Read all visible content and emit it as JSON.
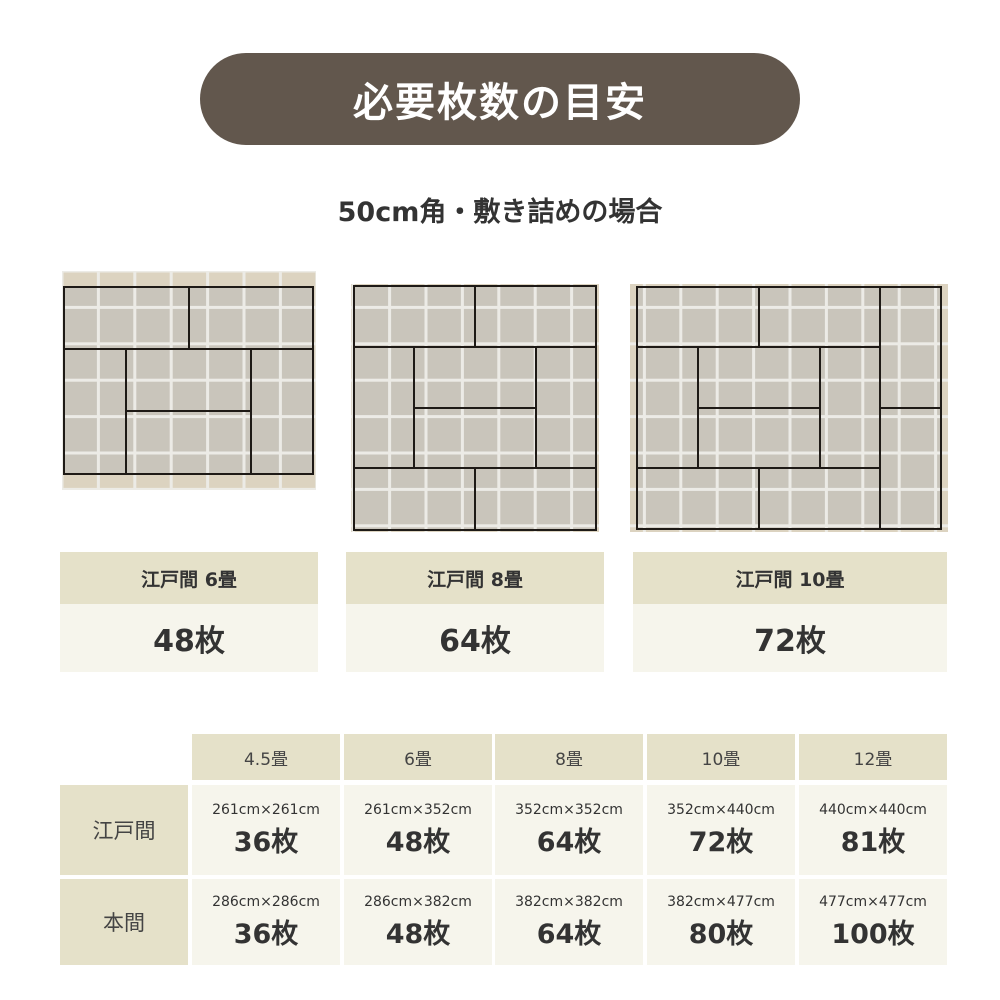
{
  "title": "必要枚数の目安",
  "subtitle": "50cm角・敷き詰めの場合",
  "colors": {
    "title_bg": "#62574d",
    "header_bg": "#e5e1c9",
    "cell_bg": "#f6f5ec",
    "tatami": "#c9c5bb",
    "floor": "#dcd3c0"
  },
  "layouts": [
    {
      "label": "江戸間 6畳",
      "count": "48枚"
    },
    {
      "label": "江戸間 8畳",
      "count": "64枚"
    },
    {
      "label": "江戸間 10畳",
      "count": "72枚"
    }
  ],
  "table": {
    "headers": [
      "4.5畳",
      "6畳",
      "8畳",
      "10畳",
      "12畳"
    ],
    "rows": [
      {
        "name": "江戸間",
        "cells": [
          {
            "size": "261cm×261cm",
            "count": "36枚"
          },
          {
            "size": "261cm×352cm",
            "count": "48枚"
          },
          {
            "size": "352cm×352cm",
            "count": "64枚"
          },
          {
            "size": "352cm×440cm",
            "count": "72枚"
          },
          {
            "size": "440cm×440cm",
            "count": "81枚"
          }
        ]
      },
      {
        "name": "本間",
        "cells": [
          {
            "size": "286cm×286cm",
            "count": "36枚"
          },
          {
            "size": "286cm×382cm",
            "count": "48枚"
          },
          {
            "size": "382cm×382cm",
            "count": "64枚"
          },
          {
            "size": "382cm×477cm",
            "count": "80枚"
          },
          {
            "size": "477cm×477cm",
            "count": "100枚"
          }
        ]
      }
    ]
  }
}
